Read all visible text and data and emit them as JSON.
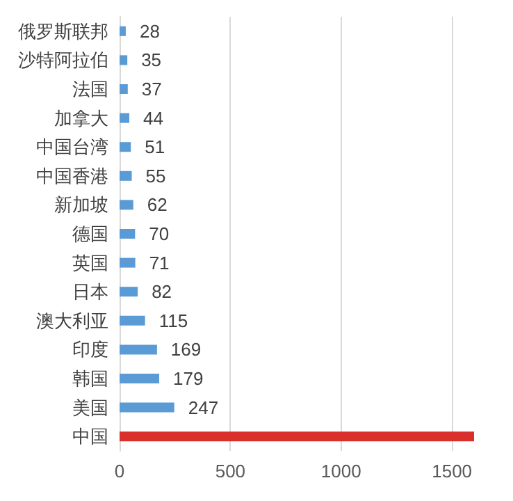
{
  "chart_data": {
    "type": "bar",
    "orientation": "horizontal",
    "categories": [
      "俄罗斯联邦",
      "沙特阿拉伯",
      "法国",
      "加拿大",
      "中国台湾",
      "中国香港",
      "新加坡",
      "德国",
      "英国",
      "日本",
      "澳大利亚",
      "印度",
      "韩国",
      "美国",
      "中国"
    ],
    "values": [
      28,
      35,
      37,
      44,
      51,
      55,
      62,
      70,
      71,
      82,
      115,
      169,
      179,
      247,
      1600
    ],
    "colors": [
      "#5b9bd5",
      "#5b9bd5",
      "#5b9bd5",
      "#5b9bd5",
      "#5b9bd5",
      "#5b9bd5",
      "#5b9bd5",
      "#5b9bd5",
      "#5b9bd5",
      "#5b9bd5",
      "#5b9bd5",
      "#5b9bd5",
      "#5b9bd5",
      "#5b9bd5",
      "#d9302c"
    ],
    "value_labels": [
      "28",
      "35",
      "37",
      "44",
      "51",
      "55",
      "62",
      "70",
      "71",
      "82",
      "115",
      "169",
      "179",
      "247",
      null
    ],
    "xlim": [
      0,
      1600
    ],
    "xticks": [
      0,
      500,
      1000,
      1500
    ],
    "grid": "x"
  }
}
